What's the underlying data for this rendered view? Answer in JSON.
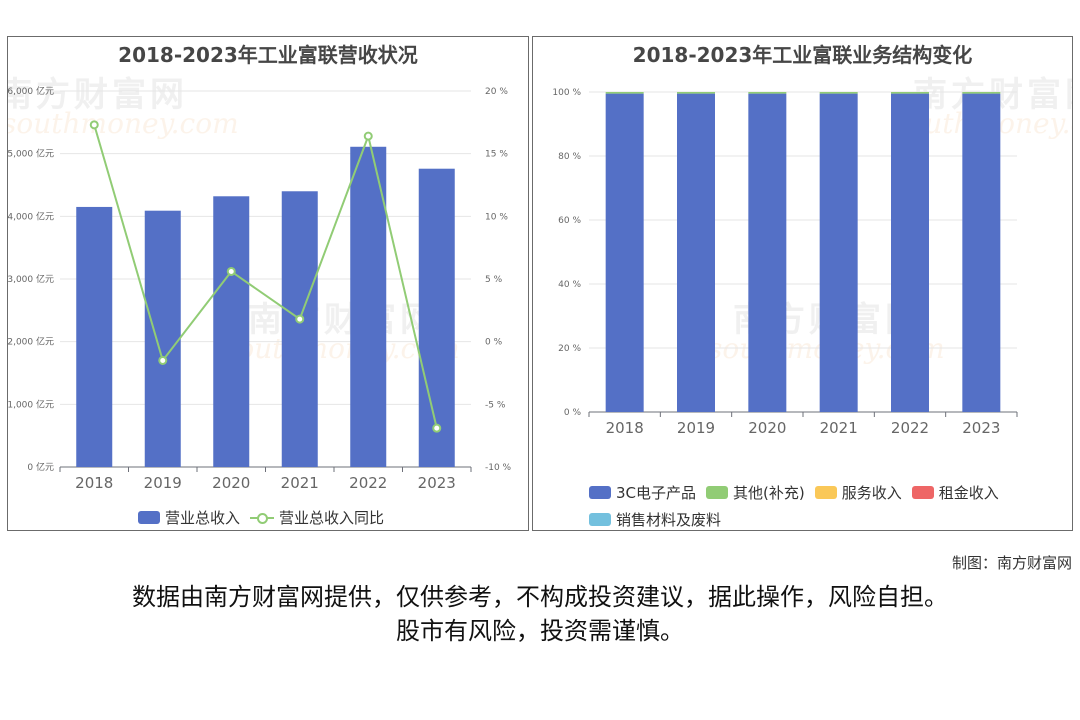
{
  "watermark": {
    "cn": "南方财富网",
    "en": "southmoney.com"
  },
  "credit": "制图：南方财富网",
  "disclaimer": {
    "line1": "数据由南方财富网提供，仅供参考，不构成投资建议，据此操作，风险自担。",
    "line2": "股市有风险，投资需谨慎。"
  },
  "colors": {
    "bar": "#5470c6",
    "line": "#91cc75",
    "gold": "#fac858",
    "red": "#ee6666",
    "cyan": "#73c0de"
  },
  "chart_data": [
    {
      "type": "bar",
      "title": "2018-2023年工业富联营收状况",
      "categories": [
        "2018",
        "2019",
        "2020",
        "2021",
        "2022",
        "2023"
      ],
      "series": [
        {
          "name": "营业总收入",
          "type": "bar",
          "axis": "left",
          "values": [
            4150,
            4090,
            4320,
            4400,
            5110,
            4760
          ]
        },
        {
          "name": "营业总收入同比",
          "type": "line",
          "axis": "right",
          "values": [
            17.3,
            -1.5,
            5.6,
            1.8,
            16.4,
            -6.9
          ]
        }
      ],
      "y_left": {
        "min": 0,
        "max": 6000,
        "ticks": [
          "0 亿元",
          "1,000 亿元",
          "2,000 亿元",
          "3,000 亿元",
          "4,000 亿元",
          "5,000 亿元",
          "6,000 亿元"
        ]
      },
      "y_right": {
        "min": -10,
        "max": 20,
        "ticks": [
          "-10 %",
          "-5 %",
          "0 %",
          "5 %",
          "10 %",
          "15 %",
          "20 %"
        ]
      },
      "grid": true,
      "legend": "bottom"
    },
    {
      "type": "bar",
      "title": "2018-2023年工业富联业务结构变化",
      "categories": [
        "2018",
        "2019",
        "2020",
        "2021",
        "2022",
        "2023"
      ],
      "series": [
        {
          "name": "3C电子产品",
          "values": [
            99.5,
            99.5,
            99.5,
            99.5,
            99.5,
            99.5
          ]
        },
        {
          "name": "其他(补充)",
          "values": [
            0.5,
            0.5,
            0.5,
            0.5,
            0.5,
            0.5
          ]
        },
        {
          "name": "服务收入",
          "values": [
            0,
            0,
            0,
            0,
            0,
            0
          ]
        },
        {
          "name": "租金收入",
          "values": [
            0,
            0,
            0,
            0,
            0,
            0
          ]
        },
        {
          "name": "销售材料及废料",
          "values": [
            0,
            0,
            0,
            0,
            0,
            0
          ]
        }
      ],
      "y": {
        "min": 0,
        "max": 100,
        "ticks": [
          "0 %",
          "20 %",
          "40 %",
          "60 %",
          "80 %",
          "100 %"
        ]
      },
      "grid": true,
      "legend": "bottom"
    }
  ]
}
